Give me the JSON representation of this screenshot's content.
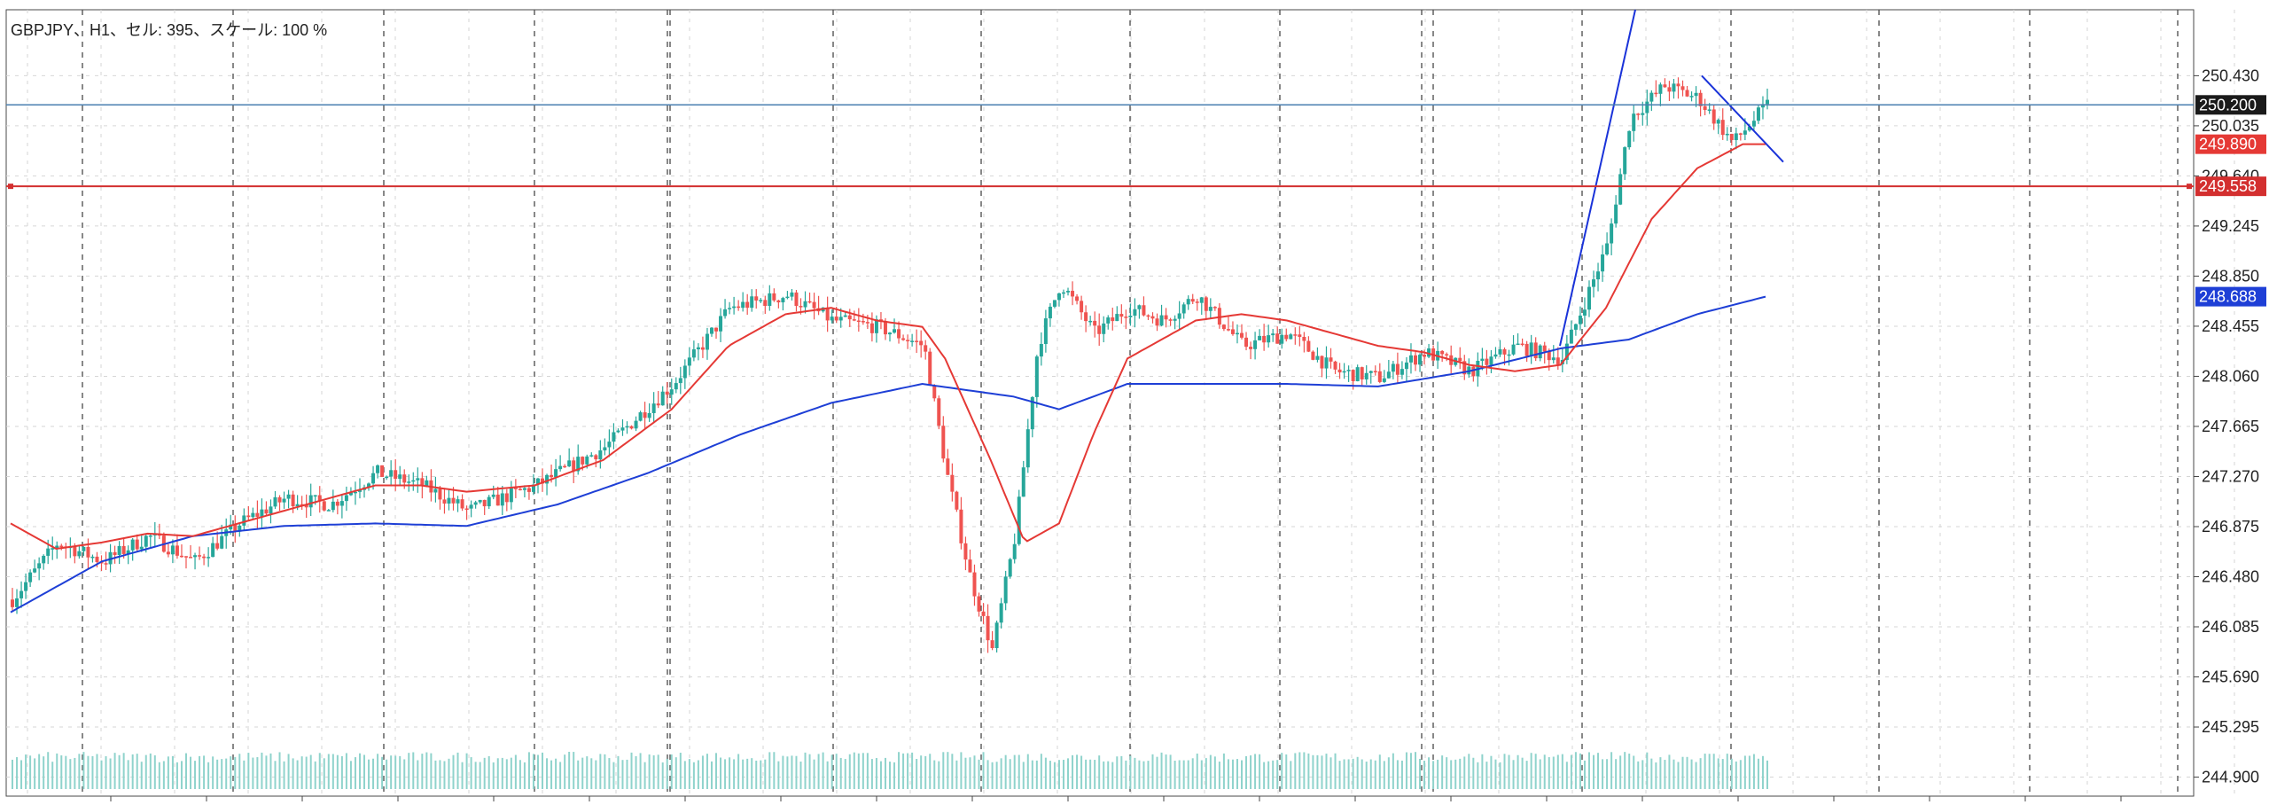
{
  "header": {
    "label": "GBPJPY、H1、セル: 395、スケール: 100 %"
  },
  "colors": {
    "bull": "#26a69a",
    "bear": "#ef5350",
    "ma_fast": "#e53935",
    "ma_slow": "#1e3fd6",
    "trend": "#1a33d9",
    "bid_line": "#4a7fb0",
    "level_line": "#d32f2f",
    "volume": "#8fd3cc",
    "grid": "#d6d6d6",
    "separator": "#555555"
  },
  "chart_data": {
    "type": "candlestick",
    "symbol": "GBPJPY",
    "timeframe": "H1",
    "bars": 395,
    "scale_percent": 100,
    "ylim": [
      244.75,
      250.95
    ],
    "yticks": [
      "250.430",
      "250.035",
      "249.640",
      "249.245",
      "248.850",
      "248.455",
      "248.060",
      "247.665",
      "247.270",
      "246.875",
      "246.480",
      "246.085",
      "245.690",
      "245.295",
      "244.900"
    ],
    "bid": {
      "value": 250.2,
      "label": "250.200"
    },
    "level": {
      "value": 249.558,
      "label": "249.558"
    },
    "ma_fast_last": {
      "value": 249.89,
      "label": "249.890"
    },
    "ma_slow_last": {
      "value": 248.688,
      "label": "248.688"
    },
    "trendline_up": [
      [
        0,
        248.3
      ],
      [
        1,
        250.95
      ]
    ],
    "trendline_down": [
      [
        0,
        250.43
      ],
      [
        1,
        249.75
      ]
    ],
    "day_separators": 21,
    "price_path": [
      [
        0,
        246.3
      ],
      [
        20,
        246.75
      ],
      [
        40,
        246.6
      ],
      [
        60,
        246.8
      ],
      [
        80,
        246.6
      ],
      [
        100,
        246.9
      ],
      [
        120,
        247.1
      ],
      [
        140,
        247.05
      ],
      [
        160,
        247.3
      ],
      [
        180,
        247.2
      ],
      [
        200,
        247.0
      ],
      [
        230,
        247.2
      ],
      [
        260,
        247.5
      ],
      [
        290,
        248.0
      ],
      [
        315,
        248.6
      ],
      [
        340,
        248.7
      ],
      [
        360,
        248.5
      ],
      [
        380,
        248.45
      ],
      [
        400,
        248.3
      ],
      [
        410,
        247.3
      ],
      [
        420,
        246.5
      ],
      [
        430,
        245.9
      ],
      [
        440,
        246.8
      ],
      [
        450,
        248.3
      ],
      [
        460,
        248.8
      ],
      [
        475,
        248.4
      ],
      [
        490,
        248.6
      ],
      [
        505,
        248.5
      ],
      [
        520,
        248.7
      ],
      [
        540,
        248.3
      ],
      [
        560,
        248.4
      ],
      [
        580,
        248.1
      ],
      [
        600,
        248.05
      ],
      [
        620,
        248.25
      ],
      [
        640,
        248.1
      ],
      [
        660,
        248.3
      ],
      [
        680,
        248.2
      ],
      [
        700,
        249.1
      ],
      [
        710,
        250.1
      ],
      [
        725,
        250.35
      ],
      [
        740,
        250.25
      ],
      [
        755,
        249.9
      ],
      [
        770,
        250.2
      ]
    ],
    "ma_fast_path": [
      [
        0,
        246.9
      ],
      [
        20,
        246.7
      ],
      [
        40,
        246.75
      ],
      [
        60,
        246.82
      ],
      [
        80,
        246.8
      ],
      [
        100,
        246.9
      ],
      [
        120,
        247.0
      ],
      [
        140,
        247.1
      ],
      [
        160,
        247.2
      ],
      [
        180,
        247.2
      ],
      [
        200,
        247.15
      ],
      [
        230,
        247.2
      ],
      [
        260,
        247.4
      ],
      [
        290,
        247.8
      ],
      [
        315,
        248.3
      ],
      [
        340,
        248.55
      ],
      [
        360,
        248.6
      ],
      [
        380,
        248.5
      ],
      [
        400,
        248.45
      ],
      [
        410,
        248.2
      ],
      [
        430,
        247.4
      ],
      [
        445,
        246.75
      ],
      [
        460,
        246.9
      ],
      [
        475,
        247.6
      ],
      [
        490,
        248.2
      ],
      [
        505,
        248.35
      ],
      [
        520,
        248.5
      ],
      [
        540,
        248.55
      ],
      [
        560,
        248.5
      ],
      [
        580,
        248.4
      ],
      [
        600,
        248.3
      ],
      [
        620,
        248.25
      ],
      [
        640,
        248.15
      ],
      [
        660,
        248.1
      ],
      [
        680,
        248.15
      ],
      [
        700,
        248.6
      ],
      [
        720,
        249.3
      ],
      [
        740,
        249.7
      ],
      [
        760,
        249.89
      ]
    ],
    "ma_slow_path": [
      [
        0,
        246.2
      ],
      [
        40,
        246.6
      ],
      [
        80,
        246.8
      ],
      [
        120,
        246.88
      ],
      [
        160,
        246.9
      ],
      [
        200,
        246.88
      ],
      [
        240,
        247.05
      ],
      [
        280,
        247.3
      ],
      [
        320,
        247.6
      ],
      [
        360,
        247.85
      ],
      [
        400,
        248.0
      ],
      [
        440,
        247.9
      ],
      [
        460,
        247.8
      ],
      [
        490,
        248.0
      ],
      [
        520,
        248.0
      ],
      [
        560,
        248.0
      ],
      [
        600,
        247.98
      ],
      [
        640,
        248.1
      ],
      [
        680,
        248.28
      ],
      [
        710,
        248.35
      ],
      [
        740,
        248.55
      ],
      [
        770,
        248.688
      ]
    ]
  }
}
